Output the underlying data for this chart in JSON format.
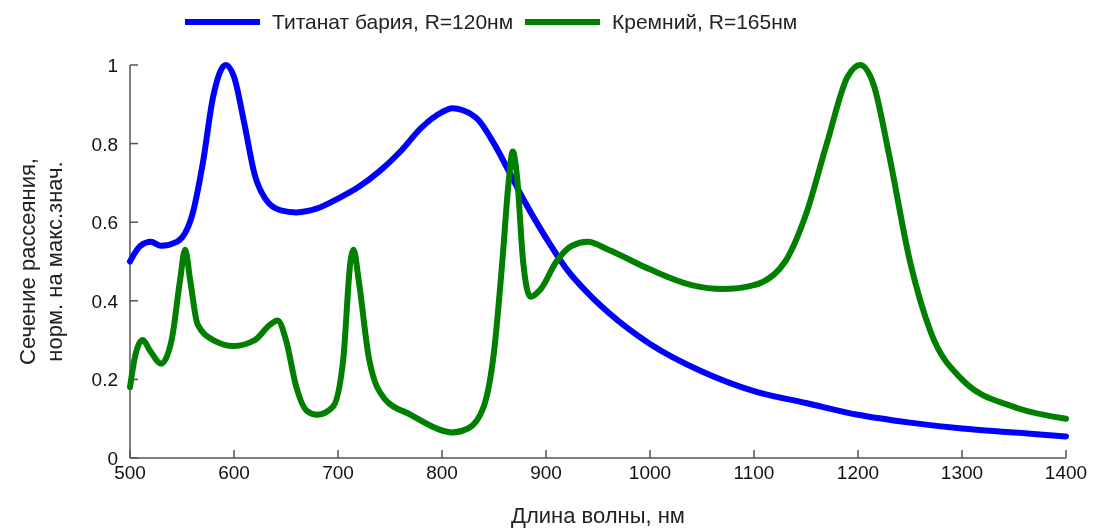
{
  "chart_data": {
    "type": "line",
    "xlabel": "Длина волны, нм",
    "ylabel": "Сечение рассеяния,\nнорм. на макс.знач.",
    "xlim": [
      500,
      1400
    ],
    "ylim": [
      0,
      1
    ],
    "xticks": [
      500,
      600,
      700,
      800,
      900,
      1000,
      1100,
      1200,
      1300,
      1400
    ],
    "yticks": [
      0,
      0.2,
      0.4,
      0.6,
      0.8,
      1
    ],
    "grid": false,
    "legend": "top",
    "line_style": "solid",
    "marker": "none",
    "series": [
      {
        "name": "Титанат бария, R=120нм",
        "color": "#0000ff",
        "x": [
          500,
          510,
          520,
          530,
          545,
          560,
          570,
          580,
          592,
          600,
          610,
          620,
          630,
          645,
          660,
          680,
          700,
          720,
          740,
          760,
          780,
          800,
          810,
          820,
          835,
          850,
          870,
          880,
          900,
          920,
          940,
          960,
          1000,
          1050,
          1100,
          1150,
          1200,
          1250,
          1300,
          1350,
          1400
        ],
        "values": [
          0.5,
          0.54,
          0.55,
          0.54,
          0.55,
          0.62,
          0.75,
          0.92,
          1.0,
          0.97,
          0.85,
          0.72,
          0.66,
          0.63,
          0.625,
          0.635,
          0.66,
          0.69,
          0.73,
          0.78,
          0.84,
          0.88,
          0.89,
          0.885,
          0.86,
          0.8,
          0.7,
          0.65,
          0.56,
          0.48,
          0.42,
          0.37,
          0.29,
          0.22,
          0.17,
          0.14,
          0.11,
          0.09,
          0.075,
          0.065,
          0.055
        ]
      },
      {
        "name": "Кремний, R=165нм",
        "color": "#007f00",
        "x": [
          500,
          505,
          512,
          520,
          530,
          540,
          548,
          553,
          558,
          565,
          580,
          600,
          620,
          635,
          642,
          650,
          660,
          670,
          680,
          695,
          705,
          712,
          715,
          720,
          730,
          745,
          770,
          800,
          810,
          825,
          840,
          850,
          858,
          864,
          868,
          872,
          878,
          885,
          895,
          910,
          925,
          940,
          960,
          1000,
          1040,
          1070,
          1100,
          1130,
          1150,
          1170,
          1190,
          1202,
          1215,
          1230,
          1250,
          1270,
          1300,
          1350,
          1400
        ],
        "values": [
          0.18,
          0.26,
          0.3,
          0.27,
          0.24,
          0.3,
          0.45,
          0.53,
          0.45,
          0.34,
          0.3,
          0.285,
          0.3,
          0.34,
          0.35,
          0.3,
          0.18,
          0.12,
          0.11,
          0.13,
          0.25,
          0.5,
          0.53,
          0.45,
          0.25,
          0.15,
          0.11,
          0.07,
          0.065,
          0.075,
          0.13,
          0.27,
          0.5,
          0.7,
          0.78,
          0.72,
          0.5,
          0.41,
          0.43,
          0.5,
          0.54,
          0.55,
          0.53,
          0.48,
          0.44,
          0.43,
          0.44,
          0.5,
          0.62,
          0.8,
          0.97,
          1.0,
          0.95,
          0.77,
          0.5,
          0.32,
          0.2,
          0.13,
          0.1
        ]
      }
    ]
  }
}
